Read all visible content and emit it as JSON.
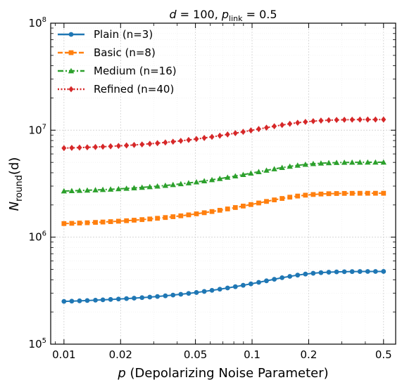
{
  "chart_data": {
    "type": "line",
    "title": "d = 100, p_link = 0.5",
    "title_parts": {
      "d_label": "d",
      "d_eq": " = 100, ",
      "p_label": "p",
      "p_sub": "link",
      "p_eq": " = 0.5"
    },
    "xlabel": "p (Depolarizing Noise Parameter)",
    "xlabel_parts": {
      "var": "p",
      "rest": " (Depolarizing Noise Parameter)"
    },
    "ylabel": "N_round(d)",
    "ylabel_parts": {
      "var": "N",
      "sub": "round",
      "rest": "(d)"
    },
    "x_scale": "log",
    "y_scale": "log",
    "xlim": [
      0.0085,
      0.58
    ],
    "ylim": [
      100000,
      100000000
    ],
    "x_ticks": [
      0.01,
      0.02,
      0.05,
      0.1,
      0.2,
      0.5
    ],
    "x_tick_labels": [
      "0.01",
      "0.02",
      "0.05",
      "0.1",
      "0.2",
      "0.5"
    ],
    "y_ticks": [
      100000,
      1000000,
      10000000,
      100000000
    ],
    "y_tick_labels": [
      {
        "base": "10",
        "exp": "5"
      },
      {
        "base": "10",
        "exp": "6"
      },
      {
        "base": "10",
        "exp": "7"
      },
      {
        "base": "10",
        "exp": "8"
      }
    ],
    "grid": true,
    "legend_position": "top-left",
    "x": [
      0.01,
      0.011,
      0.0121,
      0.0133,
      0.0147,
      0.0161,
      0.0177,
      0.0195,
      0.0215,
      0.0236,
      0.026,
      0.0286,
      0.0314,
      0.0346,
      0.038,
      0.0418,
      0.046,
      0.0506,
      0.0557,
      0.0612,
      0.0674,
      0.0741,
      0.0815,
      0.0897,
      0.0986,
      0.1085,
      0.1193,
      0.1313,
      0.1444,
      0.1588,
      0.1747,
      0.1922,
      0.2114,
      0.2325,
      0.2558,
      0.2814,
      0.3095,
      0.3404,
      0.3745,
      0.4119,
      0.4531,
      0.5
    ],
    "series": [
      {
        "name": "Plain (n=3)",
        "color": "#1f77b4",
        "line_style": "solid",
        "marker": "circle",
        "values": [
          251000,
          252500,
          254000,
          255800,
          257600,
          259600,
          261800,
          264000,
          266500,
          269200,
          272200,
          275400,
          279000,
          283000,
          287500,
          292500,
          298000,
          304000,
          311000,
          318500,
          326500,
          335000,
          344500,
          355000,
          366000,
          378000,
          391000,
          404000,
          418000,
          430000,
          442000,
          452000,
          460000,
          466000,
          470500,
          473500,
          475500,
          476800,
          477600,
          478000,
          478200,
          478300
        ]
      },
      {
        "name": "Basic (n=8)",
        "color": "#ff7f0e",
        "line_style": "dashed",
        "marker": "square",
        "values": [
          1340000,
          1347000,
          1355000,
          1364000,
          1374000,
          1385000,
          1397000,
          1410000,
          1425000,
          1441000,
          1459000,
          1479000,
          1501000,
          1526000,
          1553000,
          1583000,
          1616000,
          1652000,
          1692000,
          1736000,
          1784000,
          1836000,
          1892000,
          1953000,
          2018000,
          2087000,
          2158000,
          2230000,
          2300000,
          2365000,
          2422000,
          2469000,
          2505000,
          2531000,
          2548000,
          2559000,
          2565000,
          2569000,
          2571000,
          2572000,
          2572000,
          2572000
        ]
      },
      {
        "name": "Medium (n=16)",
        "color": "#2ca02c",
        "line_style": "dashdot",
        "marker": "triangle",
        "values": [
          2700000,
          2713000,
          2727000,
          2743000,
          2761000,
          2781000,
          2803000,
          2827000,
          2854000,
          2884000,
          2917000,
          2954000,
          2995000,
          3041000,
          3091000,
          3147000,
          3209000,
          3277000,
          3352000,
          3434000,
          3524000,
          3621000,
          3726000,
          3839000,
          3958000,
          4083000,
          4212000,
          4341000,
          4467000,
          4586000,
          4692000,
          4782000,
          4855000,
          4910000,
          4949000,
          4975000,
          4991000,
          5001000,
          5007000,
          5010000,
          5012000,
          5013000
        ]
      },
      {
        "name": "Refined (n=40)",
        "color": "#d62728",
        "line_style": "dotted",
        "marker": "diamond",
        "values": [
          6800000,
          6834000,
          6871000,
          6912000,
          6958000,
          7009000,
          7066000,
          7129000,
          7199000,
          7276000,
          7362000,
          7457000,
          7562000,
          7678000,
          7806000,
          7947000,
          8102000,
          8272000,
          8458000,
          8661000,
          8882000,
          9121000,
          9378000,
          9653000,
          9944000,
          10250000,
          10560000,
          10880000,
          11180000,
          11470000,
          11730000,
          11960000,
          12140000,
          12290000,
          12390000,
          12460000,
          12510000,
          12540000,
          12560000,
          12570000,
          12570000,
          12570000
        ]
      }
    ]
  }
}
